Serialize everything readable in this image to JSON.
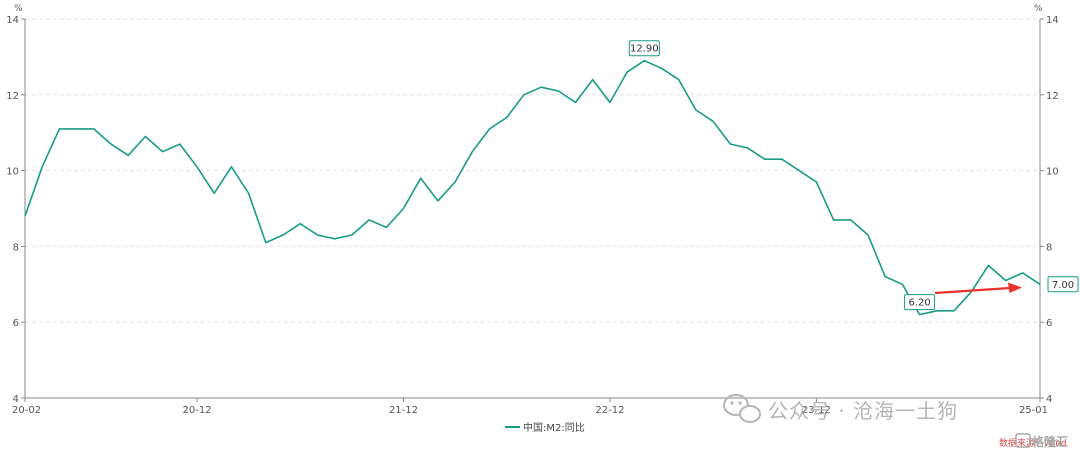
{
  "chart_data": {
    "type": "line",
    "x_ticks": [
      "20-02",
      "20-12",
      "21-12",
      "22-12",
      "23-12",
      "25-01"
    ],
    "unit_left": "%",
    "unit_right": "%",
    "y_ticks": [
      4,
      6,
      8,
      10,
      12,
      14
    ],
    "ylim": [
      4,
      14
    ],
    "grid": true,
    "legend_position": "bottom-center",
    "series": [
      {
        "name": "中国:M2:同比",
        "color": "#1a9b86",
        "start": "2020-02",
        "values": [
          8.8,
          10.1,
          11.1,
          11.1,
          11.1,
          10.7,
          10.4,
          10.9,
          10.5,
          10.7,
          10.1,
          9.4,
          10.1,
          9.4,
          8.1,
          8.3,
          8.6,
          8.3,
          8.2,
          8.3,
          8.7,
          8.5,
          9.0,
          9.8,
          9.2,
          9.7,
          10.5,
          11.1,
          11.4,
          12.0,
          12.2,
          12.1,
          11.8,
          12.4,
          11.8,
          12.6,
          12.9,
          12.7,
          12.4,
          11.6,
          11.3,
          10.7,
          10.6,
          10.3,
          10.3,
          10.0,
          9.7,
          8.7,
          8.7,
          8.3,
          7.2,
          7.0,
          6.2,
          6.3,
          6.3,
          6.8,
          7.5,
          7.1,
          7.3,
          7.0
        ]
      }
    ],
    "annotations": [
      {
        "label": "12.90",
        "index": 36
      },
      {
        "label": "6.20",
        "index": 52
      },
      {
        "label": "7.00",
        "index": 59
      }
    ]
  },
  "watermark": {
    "text": "公众号 · 沧海一土狗",
    "source": "数据来源：Wind",
    "brand": "格隆汇"
  },
  "colors": {
    "line": "#1a9b86",
    "arrow": "#e8322b"
  }
}
